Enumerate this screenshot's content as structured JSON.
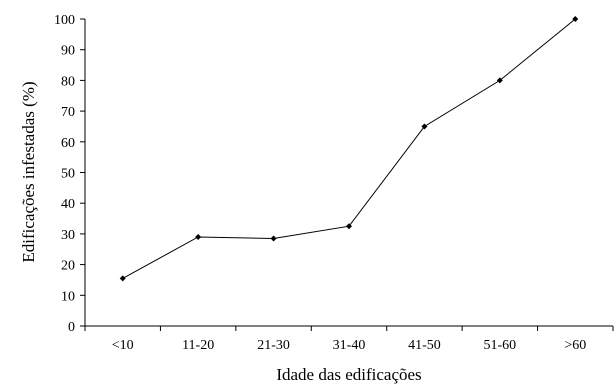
{
  "chart_data": {
    "type": "line",
    "title": "",
    "xlabel": "Idade das edificações",
    "ylabel": "Edificações infestadas (%)",
    "categories": [
      "<10",
      "11-20",
      "21-30",
      "31-40",
      "41-50",
      "51-60",
      ">60"
    ],
    "series": [
      {
        "values": [
          15.5,
          29,
          28.5,
          32.5,
          65,
          80,
          100
        ]
      }
    ],
    "ylim": [
      0,
      100
    ],
    "yticks": [
      "0",
      "10",
      "20",
      "30",
      "40",
      "50",
      "60",
      "70",
      "80",
      "90",
      "100"
    ],
    "grid": false,
    "legend": "none",
    "colors": {
      "line": "#000000",
      "axis": "#000000"
    }
  }
}
